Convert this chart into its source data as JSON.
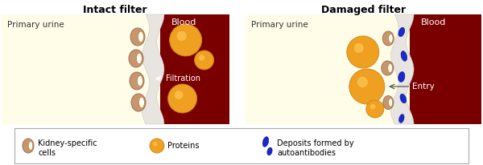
{
  "title_left": "Intact filter",
  "title_right": "Damaged filter",
  "urine_color": "#fffde8",
  "blood_color": "#7a0000",
  "filter_color": "#e8e4e0",
  "protein_color": "#f0a020",
  "protein_edge": "#c8841a",
  "cell_color": "#c8966e",
  "cell_edge": "#a07050",
  "deposit_color": "#1a28cc",
  "deposit_edge": "#0a1899",
  "label_primary_urine": "Primary urine",
  "label_blood": "Blood",
  "label_filtration": "Filtration",
  "label_entry": "Entry",
  "legend_cell": "Kidney-specific\ncells",
  "legend_protein": "Proteins",
  "legend_deposit": "Deposits formed by\nautoantibodies",
  "overall_bg": "#ffffff"
}
